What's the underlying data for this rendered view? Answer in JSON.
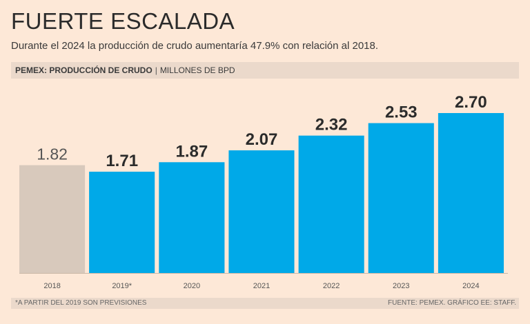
{
  "header": {
    "title": "FUERTE ESCALADA",
    "subtitle": "Durante el 2024 la producción de crudo aumentaría 47.9% con relación al 2018.",
    "band_bold": "PEMEX: PRODUCCIÓN DE CRUDO",
    "band_sep": "|",
    "band_unit": "MILLONES DE BPD"
  },
  "footer": {
    "note": "*A PARTIR DEL 2019 SON PREVISIONES",
    "source": "FUENTE: PEMEX. GRÁFICO EE: STAFF."
  },
  "colors": {
    "actual": "#d8c9bc",
    "forecast": "#00a9e8",
    "actual_label": "#555555",
    "forecast_label": "#2b2b2b"
  },
  "chart_data": {
    "type": "bar",
    "categories": [
      "2018",
      "2019*",
      "2020",
      "2021",
      "2022",
      "2023",
      "2024"
    ],
    "values": [
      1.82,
      1.71,
      1.87,
      2.07,
      2.32,
      2.53,
      2.7
    ],
    "value_labels": [
      "1.82",
      "1.71",
      "1.87",
      "2.07",
      "2.32",
      "2.53",
      "2.70"
    ],
    "kind": [
      "actual",
      "forecast",
      "forecast",
      "forecast",
      "forecast",
      "forecast",
      "forecast"
    ],
    "title": "PEMEX: PRODUCCIÓN DE CRUDO",
    "ylabel": "MILLONES DE BPD",
    "ylim": [
      0,
      2.7
    ],
    "grid": false
  }
}
